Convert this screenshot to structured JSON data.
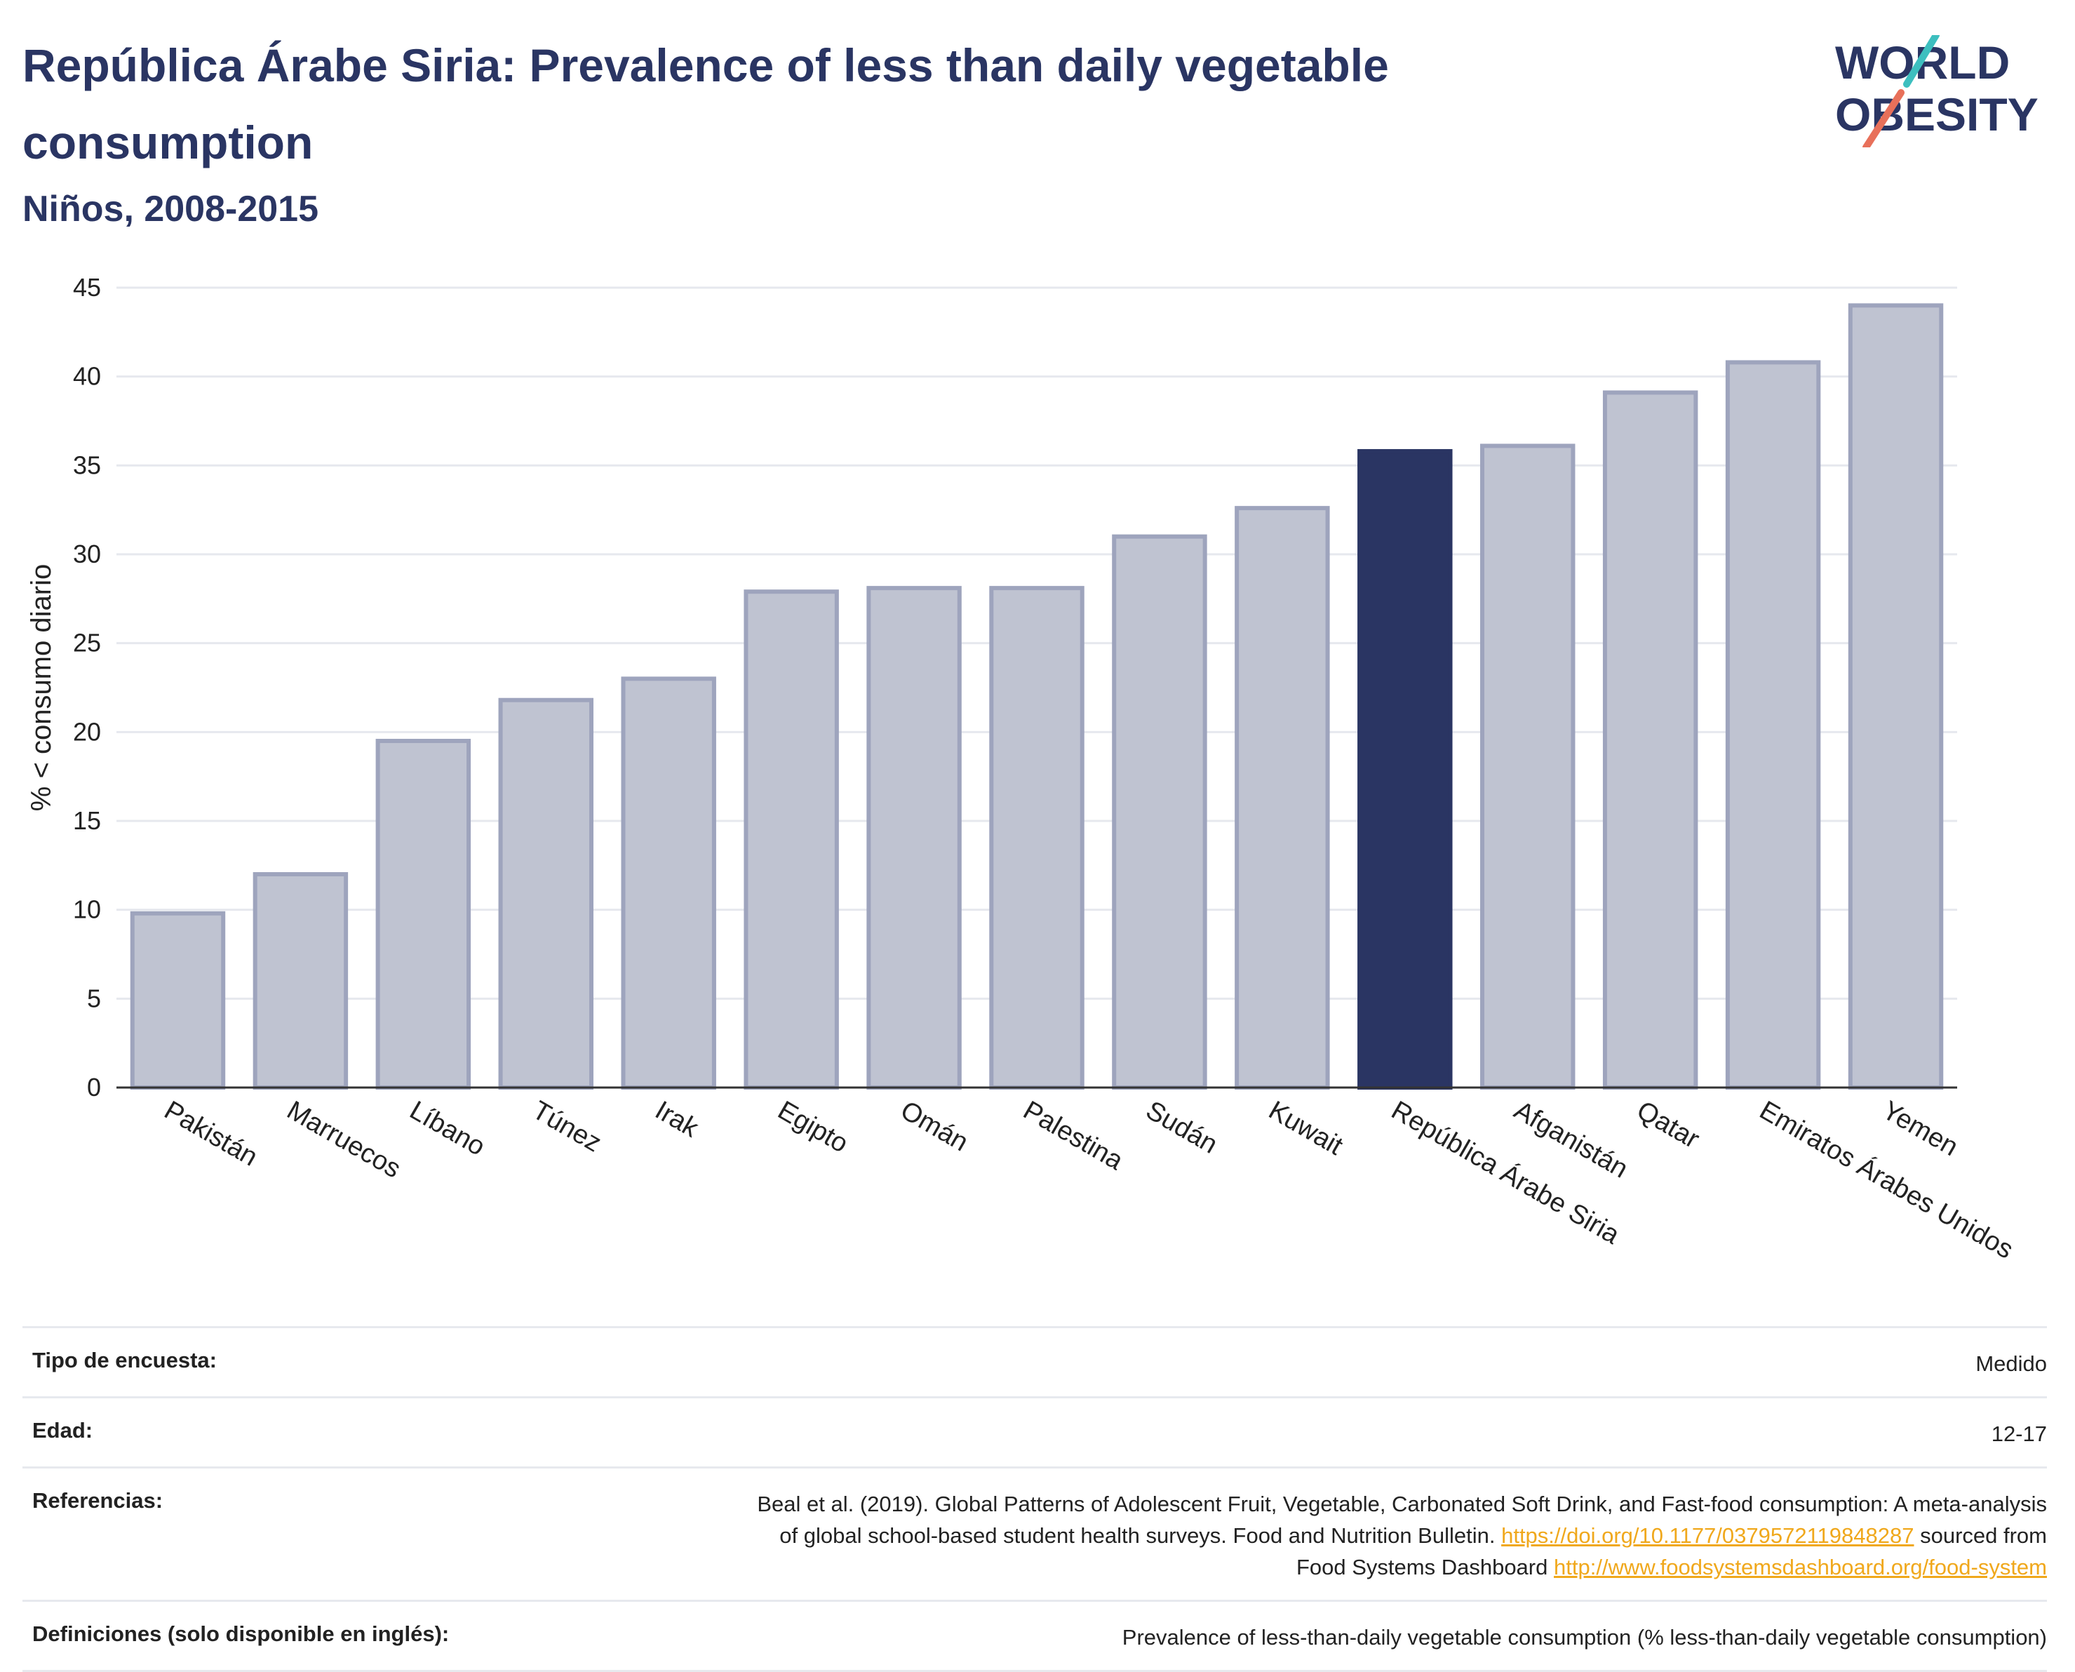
{
  "header": {
    "title": "República Árabe Siria: Prevalence of less than daily vegetable consumption",
    "subtitle": "Niños, 2008-2015",
    "logo_line1": "WORLD",
    "logo_line2": "OBESITY"
  },
  "colors": {
    "primary": "#2a3563",
    "bar_fill": "#bfc3d1",
    "bar_stroke": "#9ea4bd",
    "grid": "#e6e8ee",
    "link": "#f0a81c",
    "logo_teal": "#3dbfbf",
    "logo_coral": "#e8705a"
  },
  "chart_data": {
    "type": "bar",
    "title": "República Árabe Siria: Prevalence of less than daily vegetable consumption",
    "subtitle": "Niños, 2008-2015",
    "ylabel": "% < consumo diario",
    "xlabel": "",
    "ylim": [
      0,
      45
    ],
    "yticks": [
      0,
      5,
      10,
      15,
      20,
      25,
      30,
      35,
      40,
      45
    ],
    "grid": true,
    "highlight": "República Árabe Siria",
    "categories": [
      "Pakistán",
      "Marruecos",
      "Líbano",
      "Túnez",
      "Irak",
      "Egipto",
      "Omán",
      "Palestina",
      "Sudán",
      "Kuwait",
      "República Árabe Siria",
      "Afganistán",
      "Qatar",
      "Emiratos Árabes Unidos",
      "Yemen"
    ],
    "values": [
      9.8,
      12.0,
      19.5,
      21.8,
      23.0,
      27.9,
      28.1,
      28.1,
      31.0,
      32.6,
      35.8,
      36.1,
      39.1,
      40.8,
      44.0
    ]
  },
  "info": {
    "survey_label": "Tipo de encuesta:",
    "survey_value": "Medido",
    "age_label": "Edad:",
    "age_value": "12-17",
    "refs_label": "Referencias:",
    "refs_line1": "Beal et al. (2019). Global Patterns of Adolescent Fruit, Vegetable, Carbonated Soft Drink, and Fast-food consumption: A meta-analysis",
    "refs_line2_a": "of global school-based student health surveys. Food and Nutrition Bulletin.",
    "refs_link1": "https://doi.org/10.1177/0379572119848287",
    "refs_line2_b": "sourced from",
    "refs_line3_a": "Food Systems Dashboard",
    "refs_link2": "http://www.foodsystemsdashboard.org/food-system",
    "defs_label": "Definiciones (solo disponible en inglés):",
    "defs_value": "Prevalence of less-than-daily vegetable consumption (% less-than-daily vegetable consumption)"
  }
}
